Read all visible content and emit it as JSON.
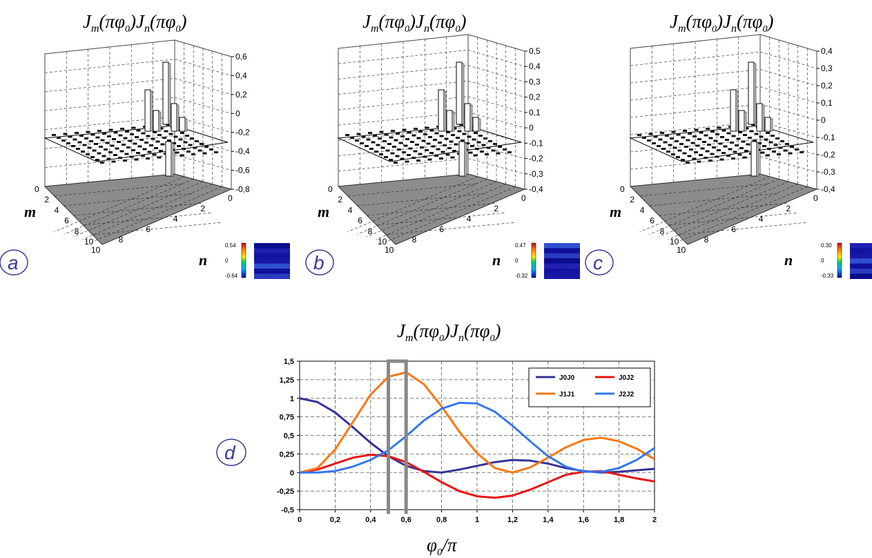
{
  "panels": [
    {
      "letter": "a",
      "title": "J_m(πφ0)J_n(πφ0)",
      "title_parts": {
        "j": "J",
        "m": "m",
        "n": "n",
        "arg": "(πφ",
        "sub0": "0",
        "close": ")"
      },
      "zaxis_ticks": [
        "0,6",
        "0,4",
        "0,2",
        "0",
        "-0,2",
        "-0,4",
        "-0,6",
        "-0,8"
      ],
      "m_ticks": [
        "0",
        "2",
        "4",
        "6",
        "8",
        "10"
      ],
      "n_ticks": [
        "10",
        "8",
        "6",
        "4",
        "2",
        "0"
      ],
      "m_label": "m",
      "n_label": "n",
      "colorbar_ticks": [
        "0.54",
        "0",
        "-0.64"
      ],
      "accent": "#3a3a9a"
    },
    {
      "letter": "b",
      "title": "J_m(πφ0)J_n(πφ0)",
      "zaxis_ticks": [
        "0,5",
        "0,4",
        "0,3",
        "0,2",
        "0,1",
        "0",
        "-0,1",
        "-0,2",
        "-0,3",
        "-0,4"
      ],
      "m_ticks": [
        "0",
        "2",
        "4",
        "6",
        "8",
        "10"
      ],
      "n_ticks": [
        "10",
        "8",
        "6",
        "4",
        "2",
        "0"
      ],
      "m_label": "m",
      "n_label": "n",
      "colorbar_ticks": [
        "0.47",
        "0",
        "-0.32"
      ],
      "accent": "#3a3a9a"
    },
    {
      "letter": "c",
      "title": "J_m(πφ0)J_n(πφ0)",
      "zaxis_ticks": [
        "0,4",
        "0,3",
        "0,2",
        "0,1",
        "0",
        "-0,1",
        "-0,2",
        "-0,3",
        "-0,4"
      ],
      "m_ticks": [
        "0",
        "2",
        "4",
        "6",
        "8",
        "10"
      ],
      "n_ticks": [
        "10",
        "8",
        "6",
        "4",
        "2",
        "0"
      ],
      "m_label": "m",
      "n_label": "n",
      "colorbar_ticks": [
        "0.30",
        "0",
        "-0.33"
      ],
      "accent": "#3a3a9a"
    }
  ],
  "line_panel": {
    "letter": "d",
    "chart_data": {
      "type": "line",
      "title": "J_m(πφ0)J_n(πφ0)",
      "xlabel": "φ0/π",
      "ylabel": "",
      "xlim": [
        0,
        2
      ],
      "ylim": [
        -0.5,
        1.5
      ],
      "x_ticks": [
        "0",
        "0,2",
        "0,4",
        "0,6",
        "0,8",
        "1",
        "1,2",
        "1,4",
        "1,6",
        "1,8",
        "2"
      ],
      "y_ticks": [
        "1,5",
        "1,25",
        "1",
        "0,75",
        "0,5",
        "0,25",
        "0",
        "-0,25",
        "-0,5"
      ],
      "grid": true,
      "legend_position": "top-right",
      "highlight_region_x": [
        0.5,
        0.6
      ],
      "x": [
        0,
        0.1,
        0.2,
        0.3,
        0.4,
        0.5,
        0.6,
        0.7,
        0.8,
        0.9,
        1.0,
        1.1,
        1.2,
        1.3,
        1.4,
        1.5,
        1.6,
        1.7,
        1.8,
        1.9,
        2.0
      ],
      "series": [
        {
          "name": "J0J0",
          "color": "#333399",
          "values": [
            1.0,
            0.95,
            0.81,
            0.61,
            0.4,
            0.22,
            0.09,
            0.02,
            0.0,
            0.04,
            0.09,
            0.14,
            0.17,
            0.16,
            0.12,
            0.06,
            0.02,
            0.0,
            0.01,
            0.03,
            0.05
          ]
        },
        {
          "name": "J0J2",
          "color": "#ee1111",
          "values": [
            0.0,
            0.04,
            0.12,
            0.2,
            0.24,
            0.22,
            0.14,
            0.01,
            -0.13,
            -0.25,
            -0.32,
            -0.34,
            -0.31,
            -0.23,
            -0.13,
            -0.03,
            0.01,
            0.02,
            -0.03,
            -0.08,
            -0.12
          ]
        },
        {
          "name": "J1J1",
          "color": "#ff7711",
          "values": [
            0.0,
            0.06,
            0.31,
            0.68,
            1.05,
            1.29,
            1.35,
            1.19,
            0.89,
            0.55,
            0.26,
            0.06,
            0.0,
            0.07,
            0.2,
            0.34,
            0.44,
            0.47,
            0.42,
            0.32,
            0.18
          ]
        },
        {
          "name": "J2J2",
          "color": "#3377ee",
          "values": [
            0.0,
            0.0,
            0.02,
            0.08,
            0.17,
            0.3,
            0.49,
            0.7,
            0.86,
            0.94,
            0.93,
            0.82,
            0.63,
            0.42,
            0.22,
            0.08,
            0.01,
            0.01,
            0.06,
            0.17,
            0.33
          ]
        }
      ]
    }
  }
}
